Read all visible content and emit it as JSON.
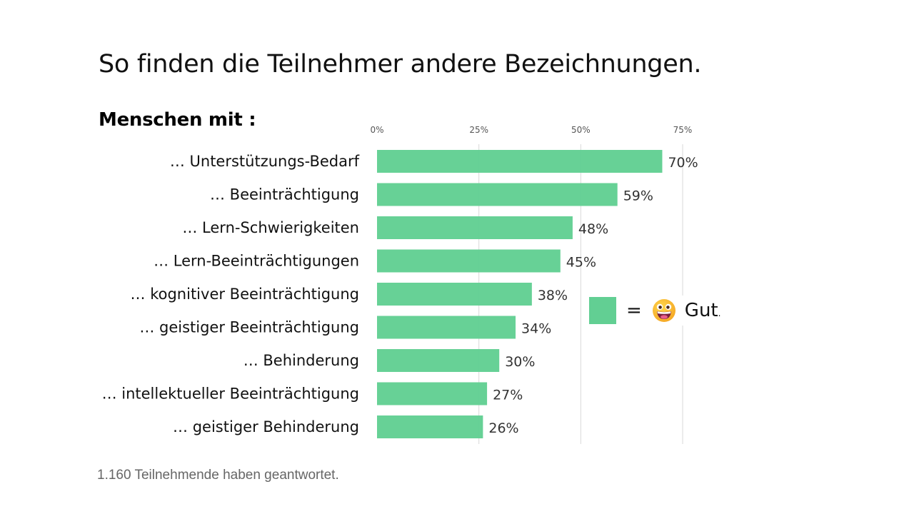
{
  "title": "So finden die Teilnehmer andere Bezeichnungen.",
  "subtitle": "Menschen mit :",
  "footer": "1.160 Teilnehmende haben geantwortet.",
  "legend": {
    "equals": "=",
    "icon": "grinning-face-emoji-icon",
    "label": "Gut",
    "dot": "."
  },
  "colors": {
    "bar": "#62cf93",
    "grid": "#d9d9d9"
  },
  "chart_data": {
    "type": "bar",
    "orientation": "horizontal",
    "categories": [
      "… Unterstützungs-Bedarf",
      "… Beeinträchtigung",
      "… Lern-Schwierigkeiten",
      "… Lern-Beeinträchtigungen",
      "… kognitiver Beeinträchtigung",
      "… geistiger Beeinträchtigung",
      "… Behinderung",
      "… intellektueller Beeinträchtigung",
      "… geistiger Behinderung"
    ],
    "values": [
      70,
      59,
      48,
      45,
      38,
      34,
      30,
      27,
      26
    ],
    "value_labels": [
      "70%",
      "59%",
      "48%",
      "45%",
      "38%",
      "34%",
      "30%",
      "27%",
      "26%"
    ],
    "xticks": [
      0,
      25,
      50,
      75
    ],
    "xtick_labels": [
      "0%",
      "25%",
      "50%",
      "75%"
    ],
    "xlim": [
      0,
      75
    ],
    "grid": true,
    "axis_position": "top",
    "legend_placement": "right"
  }
}
